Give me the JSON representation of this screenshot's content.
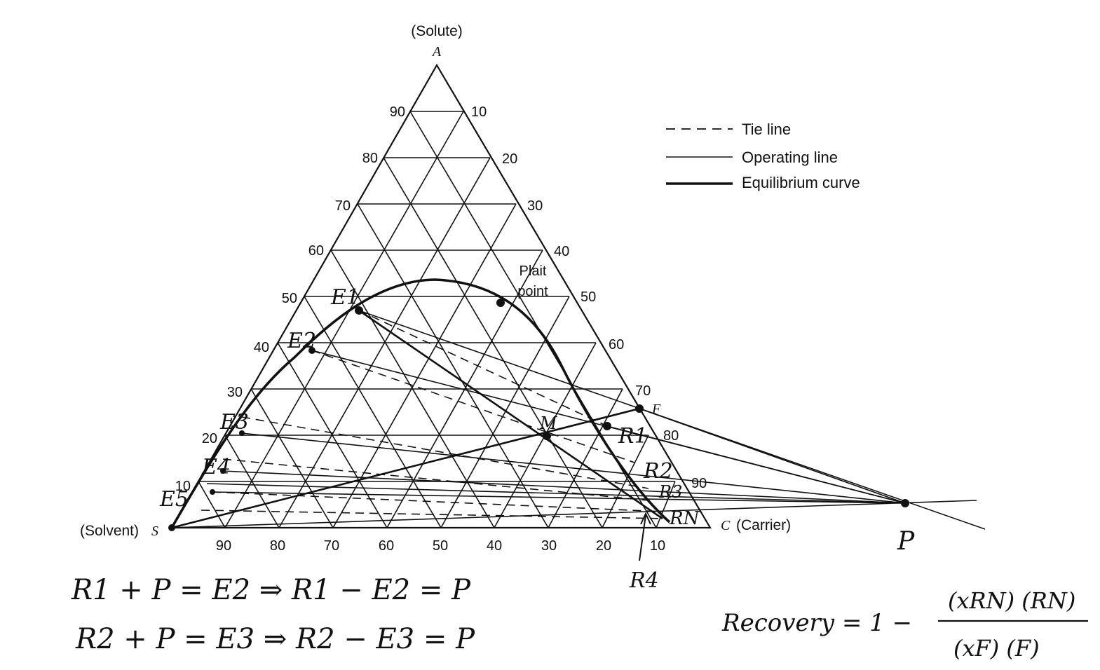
{
  "diagram": {
    "vertex_labels": {
      "top_name": "(Solute)",
      "top_letter": "A",
      "left_name": "(Solvent)",
      "left_letter": "S",
      "right_letter": "C",
      "right_name": "(Carrier)"
    },
    "left_ticks": [
      "90",
      "80",
      "70",
      "60",
      "50",
      "40",
      "30",
      "20",
      "10"
    ],
    "right_ticks": [
      "10",
      "20",
      "30",
      "40",
      "50",
      "60",
      "70",
      "80",
      "90"
    ],
    "bottom_ticks": [
      "90",
      "80",
      "70",
      "60",
      "50",
      "40",
      "30",
      "20",
      "10"
    ],
    "legend": [
      {
        "label": "Tie line",
        "style": "dashed"
      },
      {
        "label": "Operating line",
        "style": "thin"
      },
      {
        "label": "Equilibrium curve",
        "style": "thick"
      }
    ],
    "plait_point_label": [
      "Plait",
      "point"
    ],
    "feed_label": "F",
    "mix_label": "M",
    "handwritten_points": {
      "E1": "E1",
      "E2": "E2",
      "E3": "E3",
      "E4": "E4",
      "E5": "E5",
      "R1": "R1",
      "R2": "R2",
      "R3": "R3",
      "R4": "R4",
      "RN": "RN",
      "P": "P"
    },
    "equations": [
      "R1 + P = E2  ⇒  R1 − E2 = P",
      "R2 + P = E3  ⇒  R2 − E3 = P"
    ],
    "recovery": {
      "lhs": "Recovery  =  1 −",
      "numerator": "(xRN) (RN)",
      "denominator": "(xF) (F)"
    },
    "colors": {
      "ink": "#111111",
      "background": "#ffffff"
    }
  }
}
